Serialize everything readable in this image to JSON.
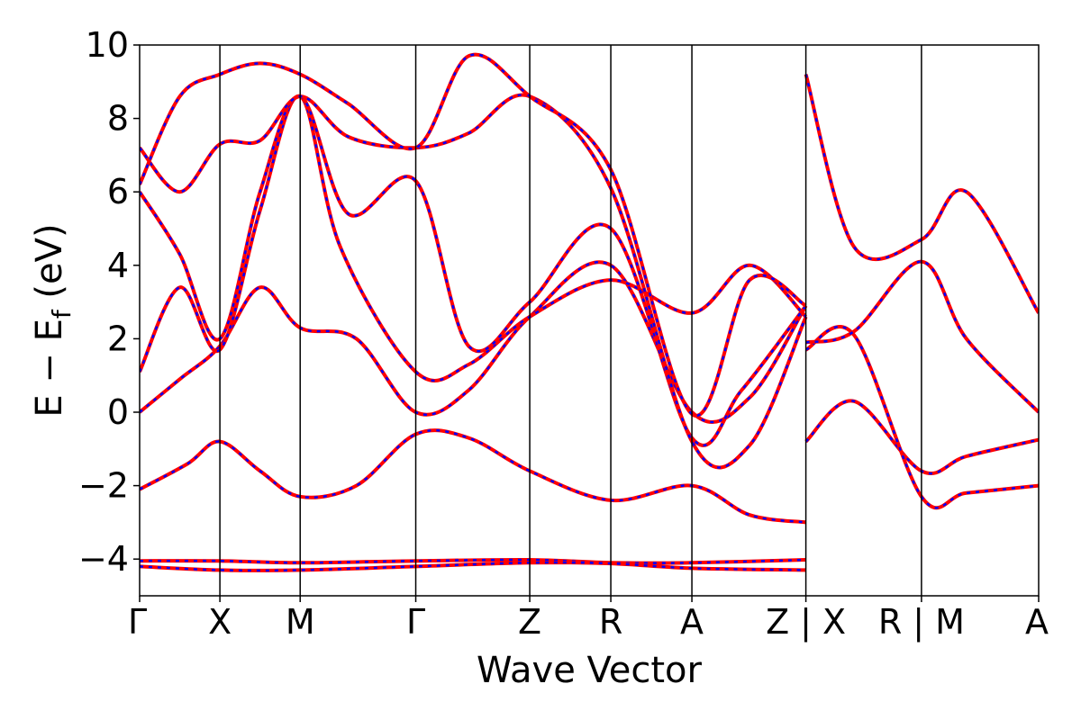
{
  "chart_data": {
    "type": "line",
    "title": "",
    "xlabel": "Wave Vector",
    "ylabel": {
      "main": "E − E",
      "subscript": "f",
      "unit": "(eV)"
    },
    "ylim": [
      -5,
      10
    ],
    "yticks": [
      -4,
      -2,
      0,
      2,
      4,
      6,
      8,
      10
    ],
    "ytick_labels": [
      "−4",
      "−2",
      "0",
      "2",
      "4",
      "6",
      "8",
      "10"
    ],
    "xlim": [
      0,
      11.2
    ],
    "kpoint_positions": [
      0,
      1,
      2,
      3.44,
      4.86,
      5.87,
      6.88,
      8.3,
      9.74,
      11.2
    ],
    "kpoint_labels": [
      "Γ",
      "X",
      "M",
      "Γ",
      "Z",
      "R",
      "A",
      "Z | X",
      "R | M",
      "A"
    ],
    "grid": false,
    "legend": "none",
    "colors": {
      "reference_bands": "#ff0000",
      "comparison_bands": "#0000ff"
    },
    "series_style": "red solid bands overlaid by blue dashed bands",
    "bands": [
      {
        "x": [
          0,
          1,
          2,
          3.44,
          4.86,
          5.87,
          6.88,
          8.3
        ],
        "y": [
          -4.05,
          -4.05,
          -4.1,
          -4.05,
          -4.02,
          -4.1,
          -4.1,
          -4.02
        ]
      },
      {
        "x": [
          0,
          1,
          2,
          3.44,
          4.86,
          5.87,
          6.88,
          8.3
        ],
        "y": [
          -4.2,
          -4.3,
          -4.3,
          -4.2,
          -4.1,
          -4.12,
          -4.25,
          -4.3
        ]
      },
      {
        "x": [
          0,
          0.6,
          1,
          1.5,
          2,
          2.7,
          3.44,
          4.1,
          4.86,
          5.87,
          6.88,
          7.6,
          8.3
        ],
        "y": [
          -2.1,
          -1.4,
          -0.8,
          -1.6,
          -2.3,
          -2.0,
          -0.6,
          -0.7,
          -1.6,
          -2.4,
          -2.0,
          -2.8,
          -3.0
        ]
      },
      {
        "x": [
          0,
          0.5,
          1,
          1.5,
          2,
          2.7,
          3.44,
          4.1,
          4.86,
          5.87,
          6.88,
          7.6,
          8.3
        ],
        "y": [
          0.0,
          0.9,
          1.8,
          3.4,
          2.3,
          2.0,
          0.0,
          0.6,
          2.6,
          4.0,
          0.0,
          0.4,
          2.9
        ]
      },
      {
        "x": [
          0,
          0.5,
          1,
          1.5,
          2,
          2.5,
          3.44,
          4.1,
          4.86,
          5.87,
          6.88,
          7.6,
          8.3
        ],
        "y": [
          1.1,
          3.4,
          1.7,
          5.5,
          8.6,
          4.5,
          1.1,
          1.3,
          2.6,
          3.6,
          2.7,
          4.0,
          2.6
        ]
      },
      {
        "x": [
          0,
          0.5,
          1,
          1.5,
          2,
          2.6,
          3.44,
          4.1,
          4.86,
          5.87,
          6.88,
          7.5,
          8.3
        ],
        "y": [
          6.0,
          4.3,
          2.0,
          6.0,
          8.6,
          5.4,
          6.3,
          1.8,
          3.0,
          5.0,
          -0.7,
          0.6,
          2.9
        ]
      },
      {
        "x": [
          0,
          0.5,
          1,
          1.5,
          2,
          2.6,
          3.44,
          4.1,
          4.86,
          5.87,
          6.88,
          7.6,
          8.3
        ],
        "y": [
          7.2,
          6.0,
          7.3,
          7.4,
          8.6,
          7.5,
          7.2,
          7.6,
          8.6,
          6.1,
          -0.8,
          -0.9,
          2.6
        ]
      },
      {
        "x": [
          0,
          0.5,
          1,
          1.5,
          2,
          2.6,
          3.44,
          4.1,
          4.86,
          5.87,
          6.88,
          7.6,
          8.3
        ],
        "y": [
          6.2,
          8.6,
          9.2,
          9.5,
          9.2,
          8.4,
          7.2,
          9.7,
          8.6,
          6.6,
          -0.05,
          3.6,
          2.9
        ]
      },
      {
        "x": [
          8.3,
          8.9,
          9.74,
          10.3,
          11.2
        ],
        "y": [
          -0.8,
          0.3,
          -1.6,
          -1.2,
          -0.75
        ]
      },
      {
        "x": [
          8.3,
          8.9,
          9.74,
          10.3,
          11.2
        ],
        "y": [
          1.7,
          2.1,
          -2.3,
          -2.2,
          -2.0
        ]
      },
      {
        "x": [
          8.3,
          8.9,
          9.74,
          10.3,
          11.2
        ],
        "y": [
          1.9,
          2.2,
          4.1,
          2.0,
          0.0
        ]
      },
      {
        "x": [
          8.3,
          8.9,
          9.74,
          10.3,
          11.2
        ],
        "y": [
          9.2,
          4.5,
          4.7,
          6.0,
          2.7
        ]
      }
    ]
  }
}
